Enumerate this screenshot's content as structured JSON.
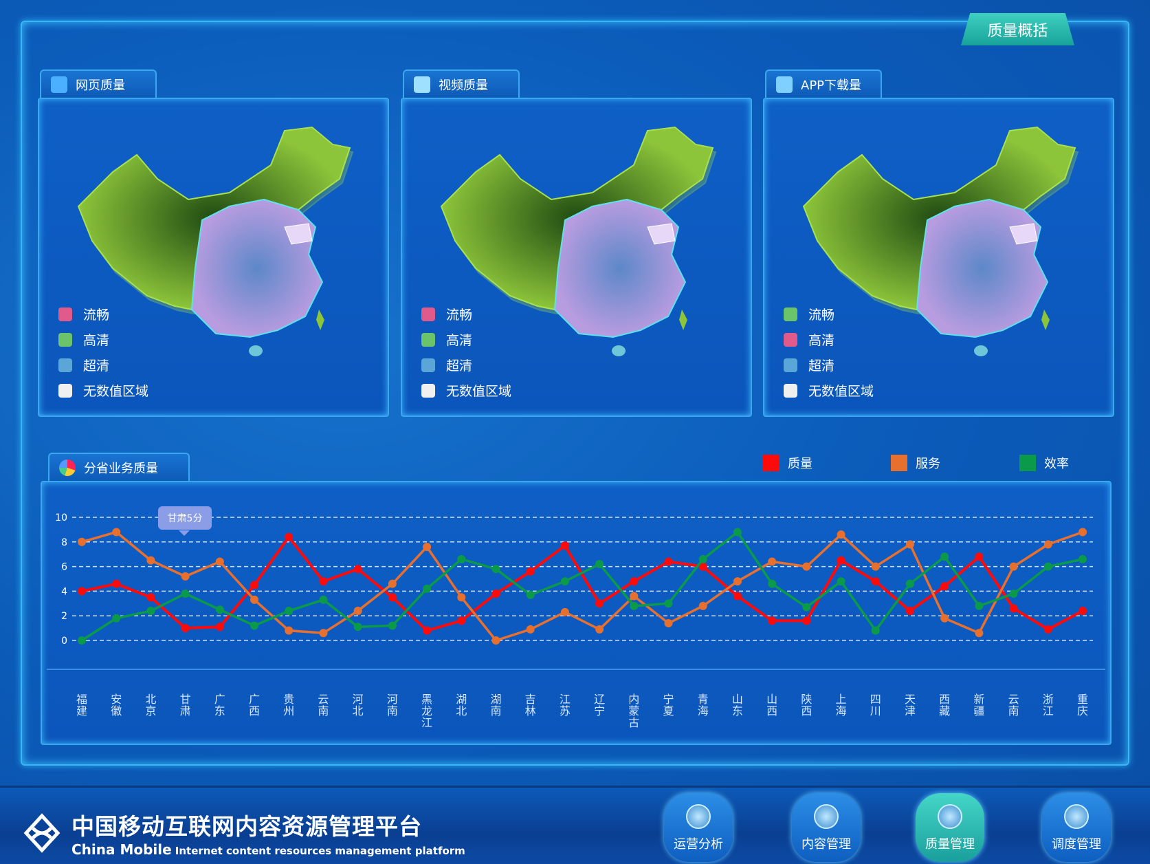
{
  "header": {
    "tab": "质量概括"
  },
  "panels": [
    {
      "title": "网页质量",
      "icon": "web-icon",
      "legend": [
        {
          "label": "流畅",
          "color": "#e05b8c"
        },
        {
          "label": "高清",
          "color": "#6cc46a"
        },
        {
          "label": "超清",
          "color": "#5ba6d8"
        },
        {
          "label": "无数值区域",
          "color": "#f0f0f0"
        }
      ]
    },
    {
      "title": "视频质量",
      "icon": "video-icon",
      "legend": [
        {
          "label": "流畅",
          "color": "#e05b8c"
        },
        {
          "label": "高清",
          "color": "#6cc46a"
        },
        {
          "label": "超清",
          "color": "#5ba6d8"
        },
        {
          "label": "无数值区域",
          "color": "#f0f0f0"
        }
      ]
    },
    {
      "title": "APP下载量",
      "icon": "download-icon",
      "legend": [
        {
          "label": "流畅",
          "color": "#6cc46a"
        },
        {
          "label": "高清",
          "color": "#e05b8c"
        },
        {
          "label": "超清",
          "color": "#5ba6d8"
        },
        {
          "label": "无数值区域",
          "color": "#f0f0f0"
        }
      ]
    }
  ],
  "chart_section": {
    "title": "分省业务质量",
    "tooltip": "甘肃5分"
  },
  "chart_data": {
    "type": "line",
    "categories": [
      "福建",
      "安徽",
      "北京",
      "甘肃",
      "广东",
      "广西",
      "贵州",
      "云南",
      "河北",
      "河南",
      "黑龙江",
      "湖北",
      "湖南",
      "吉林",
      "江苏",
      "辽宁",
      "内蒙古",
      "宁夏",
      "青海",
      "山东",
      "山西",
      "陕西",
      "上海",
      "四川",
      "天津",
      "西藏",
      "新疆",
      "云南",
      "浙江",
      "重庆"
    ],
    "ylim": [
      0,
      10
    ],
    "yticks": [
      0,
      2,
      4,
      6,
      8,
      10
    ],
    "grid": true,
    "legend_position": "top-right",
    "series": [
      {
        "name": "质量",
        "color": "#ff0a0a",
        "values": [
          4,
          4.6,
          3.5,
          1,
          1.1,
          4.5,
          8.4,
          4.8,
          5.8,
          3.5,
          0.8,
          1.6,
          3.8,
          5.6,
          7.7,
          3,
          4.8,
          6.4,
          6,
          3.6,
          1.6,
          1.6,
          6.5,
          4.8,
          2.4,
          4.4,
          6.8,
          2.6,
          0.9,
          2.4
        ]
      },
      {
        "name": "服务",
        "color": "#e8702e",
        "values": [
          8,
          8.8,
          6.5,
          5.2,
          6.4,
          3.3,
          0.8,
          0.6,
          2.4,
          4.6,
          7.6,
          3.5,
          0,
          0.9,
          2.3,
          0.9,
          3.6,
          1.4,
          2.8,
          4.8,
          6.4,
          6,
          8.6,
          6,
          7.8,
          1.8,
          0.6,
          6,
          7.8,
          8.8
        ]
      },
      {
        "name": "效率",
        "color": "#0a9a4a",
        "values": [
          0,
          1.8,
          2.4,
          3.8,
          2.5,
          1.2,
          2.4,
          3.3,
          1.1,
          1.2,
          4.2,
          6.6,
          5.8,
          3.7,
          4.8,
          6.2,
          2.8,
          3,
          6.6,
          8.8,
          4.6,
          2.7,
          4.8,
          0.8,
          4.6,
          6.8,
          2.8,
          3.8,
          6,
          6.6
        ]
      }
    ]
  },
  "footer": {
    "title_cn": "中国移动互联网内容资源管理平台",
    "title_en_brand": "China Mobile",
    "title_en": "Internet content resources management platform",
    "nav": [
      {
        "label": "运营分析",
        "active": false
      },
      {
        "label": "内容管理",
        "active": false
      },
      {
        "label": "质量管理",
        "active": true
      },
      {
        "label": "调度管理",
        "active": false
      }
    ]
  }
}
